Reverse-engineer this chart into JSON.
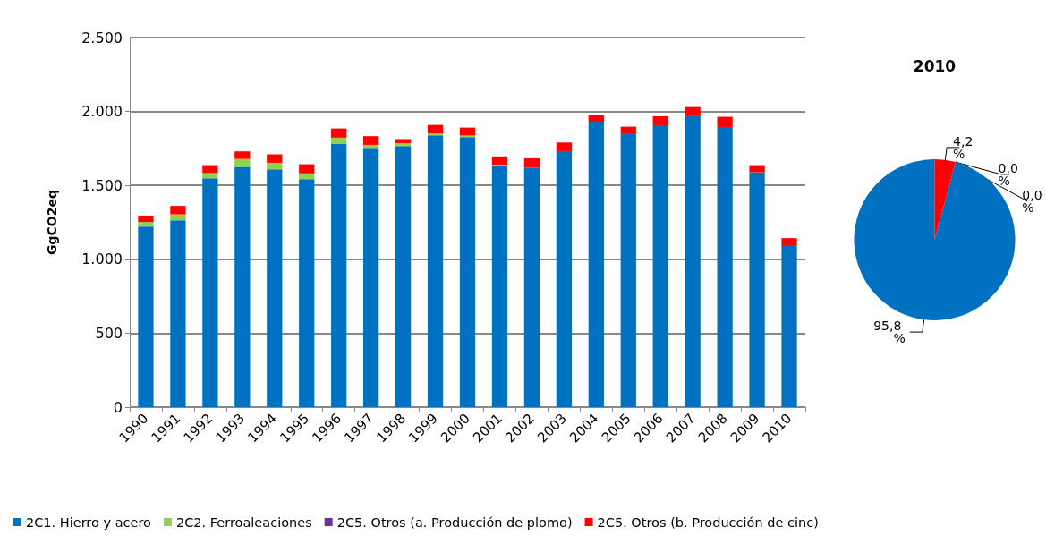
{
  "chart_data": [
    {
      "type": "bar",
      "stacked": true,
      "ylabel": "GgCO2eq",
      "categories": [
        "1990",
        "1991",
        "1992",
        "1993",
        "1994",
        "1995",
        "1996",
        "1997",
        "1998",
        "1999",
        "2000",
        "2001",
        "2002",
        "2003",
        "2004",
        "2005",
        "2006",
        "2007",
        "2008",
        "2009",
        "2010"
      ],
      "series": [
        {
          "name": "2C1. Hierro y acero",
          "color": "#0070c0",
          "values": [
            1222,
            1264,
            1548,
            1625,
            1609,
            1542,
            1782,
            1754,
            1766,
            1839,
            1827,
            1633,
            1621,
            1732,
            1931,
            1847,
            1907,
            1968,
            1895,
            1589,
            1095
          ]
        },
        {
          "name": "2C2. Ferroaleaciones",
          "color": "#92d050",
          "values": [
            30,
            40,
            35,
            54,
            44,
            39,
            41,
            20,
            20,
            12,
            10,
            6,
            0,
            0,
            0,
            0,
            0,
            0,
            0,
            0,
            0
          ]
        },
        {
          "name": "2C5. Otros (a. Producción de plomo)",
          "color": "#7030a0",
          "values": [
            0,
            0,
            0,
            0,
            0,
            0,
            0,
            0,
            0,
            0,
            0,
            0,
            0,
            0,
            0,
            0,
            0,
            0,
            0,
            0,
            0
          ]
        },
        {
          "name": "2C5. Otros (b. Producción de cinc)",
          "color": "#ff0000",
          "values": [
            44,
            57,
            54,
            51,
            57,
            62,
            62,
            59,
            27,
            58,
            54,
            57,
            62,
            58,
            47,
            50,
            61,
            62,
            69,
            48,
            48
          ]
        }
      ],
      "ylim": [
        0,
        2500
      ],
      "yticks": [
        0,
        500,
        {
          "value": 1000,
          "label": "1.000"
        },
        {
          "value": 1500,
          "label": "1.500"
        },
        {
          "value": 2000,
          "label": "2.000"
        },
        {
          "value": 2500,
          "label": "2.500"
        }
      ],
      "grid": "y",
      "legend": "bottom"
    },
    {
      "type": "pie",
      "title": "2010",
      "categories": [
        null,
        null,
        null,
        null
      ],
      "values": [
        95.8,
        0.0,
        0.0,
        4.2
      ],
      "colors": [
        "#0070c0",
        "#92d050",
        "#7030a0",
        "#ff0000"
      ],
      "value_labels": [
        "95,8 %",
        "0,0 %",
        "0,0 %",
        "4,2 %"
      ]
    }
  ]
}
